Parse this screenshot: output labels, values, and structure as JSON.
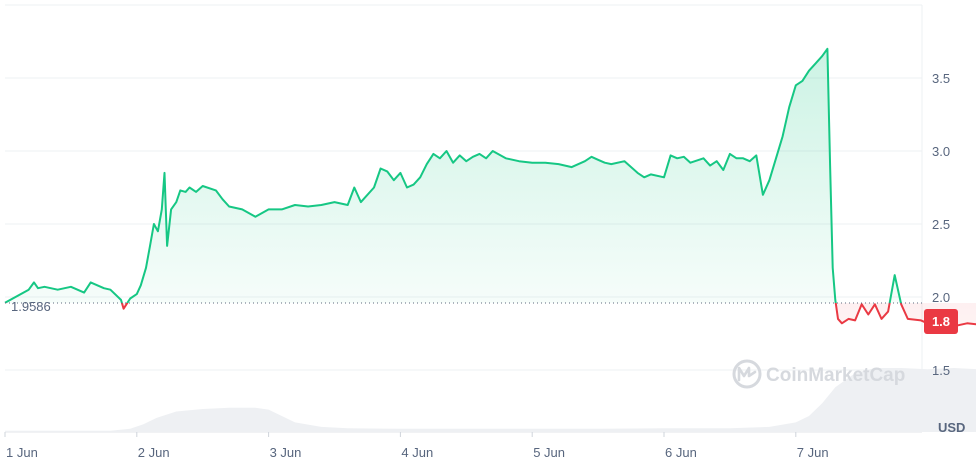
{
  "chart_data": {
    "type": "area",
    "title": "",
    "xlabel": "",
    "ylabel": "",
    "x_tick_labels": [
      "1 Jun",
      "2 Jun",
      "3 Jun",
      "4 Jun",
      "5 Jun",
      "6 Jun",
      "7 Jun"
    ],
    "y_ticks": [
      "1.5",
      "2.0",
      "2.5",
      "3.0",
      "3.5"
    ],
    "ylim": [
      1.2,
      3.95
    ],
    "xlim": [
      0,
      7.95
    ],
    "currency_label": "USD",
    "baseline_value": 1.9586,
    "baseline_label": "1.9586",
    "current_price_label": "1.8",
    "watermark": "CoinMarketCap",
    "grid": true,
    "series": [
      {
        "values": [
          [
            0.0,
            1.96
          ],
          [
            0.18,
            2.05
          ],
          [
            0.22,
            2.1
          ],
          [
            0.25,
            2.06
          ],
          [
            0.3,
            2.07
          ],
          [
            0.4,
            2.05
          ],
          [
            0.5,
            2.07
          ],
          [
            0.6,
            2.03
          ],
          [
            0.65,
            2.1
          ],
          [
            0.7,
            2.08
          ],
          [
            0.75,
            2.06
          ],
          [
            0.8,
            2.05
          ],
          [
            0.88,
            1.98
          ],
          [
            0.9,
            1.92
          ],
          [
            0.95,
            1.99
          ],
          [
            1.0,
            2.02
          ],
          [
            1.03,
            2.08
          ],
          [
            1.07,
            2.2
          ],
          [
            1.1,
            2.35
          ],
          [
            1.13,
            2.5
          ],
          [
            1.16,
            2.45
          ],
          [
            1.19,
            2.6
          ],
          [
            1.21,
            2.85
          ],
          [
            1.23,
            2.35
          ],
          [
            1.26,
            2.6
          ],
          [
            1.3,
            2.65
          ],
          [
            1.33,
            2.73
          ],
          [
            1.37,
            2.72
          ],
          [
            1.4,
            2.75
          ],
          [
            1.45,
            2.72
          ],
          [
            1.5,
            2.76
          ],
          [
            1.6,
            2.73
          ],
          [
            1.65,
            2.67
          ],
          [
            1.7,
            2.62
          ],
          [
            1.8,
            2.6
          ],
          [
            1.9,
            2.55
          ],
          [
            2.0,
            2.6
          ],
          [
            2.1,
            2.6
          ],
          [
            2.2,
            2.63
          ],
          [
            2.3,
            2.62
          ],
          [
            2.4,
            2.63
          ],
          [
            2.5,
            2.65
          ],
          [
            2.6,
            2.63
          ],
          [
            2.65,
            2.75
          ],
          [
            2.7,
            2.65
          ],
          [
            2.8,
            2.75
          ],
          [
            2.85,
            2.88
          ],
          [
            2.9,
            2.86
          ],
          [
            2.95,
            2.8
          ],
          [
            3.0,
            2.85
          ],
          [
            3.05,
            2.75
          ],
          [
            3.1,
            2.77
          ],
          [
            3.15,
            2.82
          ],
          [
            3.2,
            2.91
          ],
          [
            3.25,
            2.98
          ],
          [
            3.3,
            2.95
          ],
          [
            3.35,
            3.0
          ],
          [
            3.4,
            2.92
          ],
          [
            3.45,
            2.97
          ],
          [
            3.5,
            2.93
          ],
          [
            3.55,
            2.96
          ],
          [
            3.6,
            2.98
          ],
          [
            3.65,
            2.95
          ],
          [
            3.7,
            3.0
          ],
          [
            3.8,
            2.95
          ],
          [
            3.9,
            2.93
          ],
          [
            4.0,
            2.92
          ],
          [
            4.1,
            2.92
          ],
          [
            4.2,
            2.91
          ],
          [
            4.3,
            2.89
          ],
          [
            4.4,
            2.93
          ],
          [
            4.45,
            2.96
          ],
          [
            4.5,
            2.94
          ],
          [
            4.55,
            2.92
          ],
          [
            4.6,
            2.91
          ],
          [
            4.7,
            2.93
          ],
          [
            4.8,
            2.85
          ],
          [
            4.85,
            2.82
          ],
          [
            4.9,
            2.84
          ],
          [
            5.0,
            2.82
          ],
          [
            5.05,
            2.97
          ],
          [
            5.1,
            2.95
          ],
          [
            5.15,
            2.96
          ],
          [
            5.2,
            2.92
          ],
          [
            5.3,
            2.95
          ],
          [
            5.35,
            2.9
          ],
          [
            5.4,
            2.93
          ],
          [
            5.45,
            2.87
          ],
          [
            5.5,
            2.98
          ],
          [
            5.55,
            2.95
          ],
          [
            5.6,
            2.95
          ],
          [
            5.65,
            2.93
          ],
          [
            5.7,
            2.97
          ],
          [
            5.75,
            2.7
          ],
          [
            5.8,
            2.8
          ],
          [
            5.85,
            2.95
          ],
          [
            5.9,
            3.1
          ],
          [
            5.95,
            3.3
          ],
          [
            6.0,
            3.45
          ],
          [
            6.05,
            3.48
          ],
          [
            6.1,
            3.55
          ],
          [
            6.15,
            3.6
          ],
          [
            6.2,
            3.65
          ],
          [
            6.24,
            3.7
          ],
          [
            6.26,
            2.9
          ],
          [
            6.28,
            2.2
          ],
          [
            6.3,
            1.98
          ],
          [
            6.32,
            1.85
          ],
          [
            6.35,
            1.82
          ],
          [
            6.4,
            1.85
          ],
          [
            6.45,
            1.84
          ],
          [
            6.5,
            1.95
          ],
          [
            6.55,
            1.88
          ],
          [
            6.6,
            1.95
          ],
          [
            6.65,
            1.85
          ],
          [
            6.7,
            1.9
          ],
          [
            6.75,
            2.15
          ],
          [
            6.8,
            1.95
          ],
          [
            6.85,
            1.85
          ],
          [
            6.95,
            1.84
          ],
          [
            7.0,
            1.82
          ],
          [
            7.05,
            1.8
          ],
          [
            7.1,
            1.77
          ],
          [
            7.15,
            1.82
          ],
          [
            7.2,
            1.8
          ],
          [
            7.3,
            1.82
          ],
          [
            7.4,
            1.81
          ],
          [
            7.5,
            1.8
          ]
        ]
      }
    ],
    "volume": [
      [
        0.0,
        0.02
      ],
      [
        0.2,
        0.02
      ],
      [
        0.4,
        0.02
      ],
      [
        0.6,
        0.02
      ],
      [
        0.8,
        0.02
      ],
      [
        0.95,
        0.05
      ],
      [
        1.05,
        0.12
      ],
      [
        1.15,
        0.22
      ],
      [
        1.3,
        0.32
      ],
      [
        1.5,
        0.36
      ],
      [
        1.7,
        0.38
      ],
      [
        1.9,
        0.38
      ],
      [
        2.0,
        0.35
      ],
      [
        2.1,
        0.25
      ],
      [
        2.2,
        0.15
      ],
      [
        2.4,
        0.08
      ],
      [
        2.6,
        0.06
      ],
      [
        3.0,
        0.05
      ],
      [
        3.5,
        0.05
      ],
      [
        4.0,
        0.05
      ],
      [
        4.5,
        0.05
      ],
      [
        5.0,
        0.06
      ],
      [
        5.5,
        0.06
      ],
      [
        5.8,
        0.08
      ],
      [
        6.0,
        0.15
      ],
      [
        6.1,
        0.25
      ],
      [
        6.2,
        0.45
      ],
      [
        6.3,
        0.7
      ],
      [
        6.45,
        0.92
      ],
      [
        6.6,
        1.0
      ],
      [
        6.8,
        1.0
      ],
      [
        7.0,
        0.98
      ],
      [
        7.2,
        1.0
      ],
      [
        7.4,
        0.98
      ],
      [
        7.5,
        0.95
      ]
    ],
    "colors": {
      "up_line": "#16c784",
      "down_line": "#ea3943",
      "down_badge": "#ea3943",
      "baseline_dots": "#5c6a7e",
      "volume": "#eef0f3",
      "grid": "#eef0f3",
      "tick_text": "#58667e",
      "watermark": "#d6d9de"
    }
  }
}
